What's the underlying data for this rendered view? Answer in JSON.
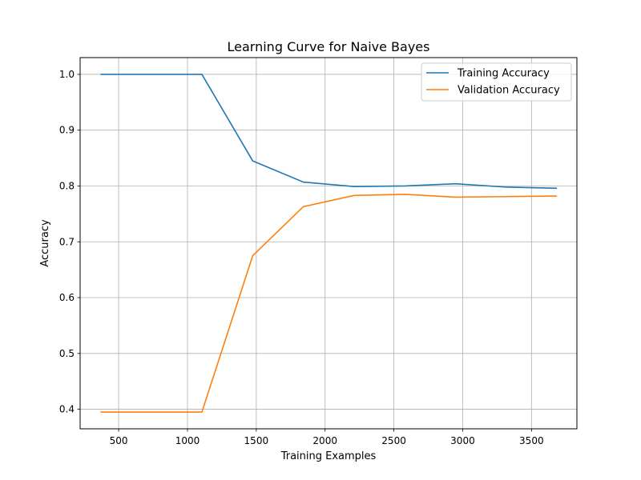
{
  "chart_data": {
    "type": "line",
    "title": "Learning Curve for Naive Bayes",
    "xlabel": "Training Examples",
    "ylabel": "Accuracy",
    "xlim": [
      220,
      3830
    ],
    "ylim": [
      0.365,
      1.03
    ],
    "xticks": [
      500,
      1000,
      1500,
      2000,
      2500,
      3000,
      3500
    ],
    "yticks": [
      0.4,
      0.5,
      0.6,
      0.7,
      0.8,
      0.9,
      1.0
    ],
    "xtick_labels": [
      "500",
      "1000",
      "1500",
      "2000",
      "2500",
      "3000",
      "3500"
    ],
    "ytick_labels": [
      "0.4",
      "0.5",
      "0.6",
      "0.7",
      "0.8",
      "0.9",
      "1.0"
    ],
    "grid": true,
    "legend_position": "top-right",
    "x": [
      368,
      737,
      1105,
      1474,
      1842,
      2211,
      2579,
      2948,
      3316,
      3685
    ],
    "series": [
      {
        "name": "Training Accuracy",
        "color": "#1f77b4",
        "values": [
          1.0,
          1.0,
          1.0,
          0.845,
          0.807,
          0.799,
          0.8,
          0.804,
          0.798,
          0.796
        ]
      },
      {
        "name": "Validation Accuracy",
        "color": "#ff7f0e",
        "values": [
          0.395,
          0.395,
          0.395,
          0.675,
          0.763,
          0.783,
          0.785,
          0.78,
          0.781,
          0.782
        ]
      }
    ]
  }
}
